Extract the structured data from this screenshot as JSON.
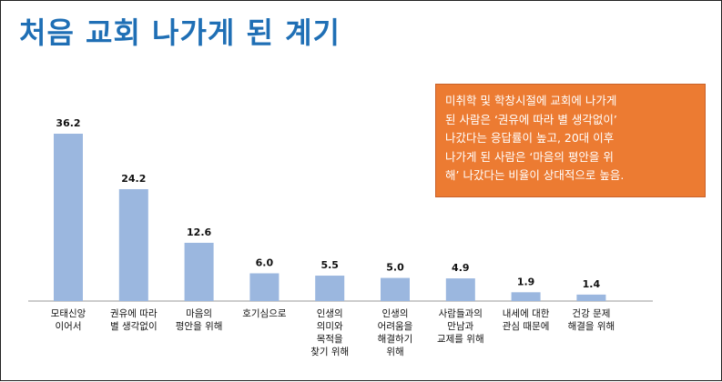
{
  "title": "처음 교회 나가게 된 계기",
  "callout": "미취학 및 학창시절에 교회에 나가게\n된 사람은 ‘권유에 따라 별 생각없이’\n나갔다는 응답률이 높고, 20대 이후\n나가게 된 사람은 ‘마음의 평안을 위\n해’ 나갔다는 비율이 상대적으로 높음.",
  "colors": {
    "title": "#1f6fb5",
    "bar": "#9bb7df",
    "callout": "#ec7b32"
  },
  "chart_data": {
    "type": "bar",
    "title": "",
    "xlabel": "",
    "ylabel": "",
    "ylim": [
      0,
      40
    ],
    "grid": false,
    "categories": [
      "모태신앙\n이어서",
      "권유에 따라\n별 생각없이",
      "마음의\n평안을 위해",
      "호기심으로",
      "인생의\n의미와\n목적을\n찾기 위해",
      "인생의\n어려움을\n해결하기\n위해",
      "사람들과의\n만남과\n교제를 위해",
      "내세에 대한\n관심 때문에",
      "건강 문제\n해결을 위해"
    ],
    "values": [
      36.2,
      24.2,
      12.6,
      6.0,
      5.5,
      5.0,
      4.9,
      1.9,
      1.4
    ],
    "value_labels": [
      "36.2",
      "24.2",
      "12.6",
      "6.0",
      "5.5",
      "5.0",
      "4.9",
      "1.9",
      "1.4"
    ]
  }
}
